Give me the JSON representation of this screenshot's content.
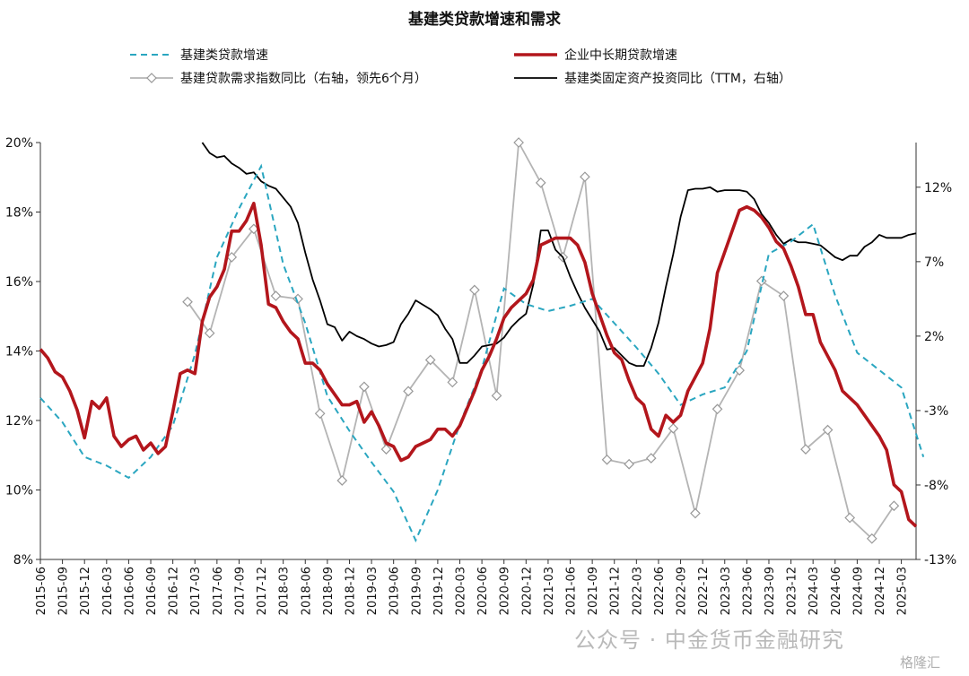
{
  "chart_data": {
    "type": "line",
    "title": "基建类贷款增速和需求",
    "left_axis": {
      "ylim": [
        0.08,
        0.2
      ],
      "ticks": [
        "20%",
        "18%",
        "16%",
        "14%",
        "12%",
        "10%",
        "8%"
      ]
    },
    "right_axis": {
      "ylim": [
        -13,
        15
      ],
      "ticks": [
        "12%",
        "7%",
        "2%",
        "-3%",
        "-8%",
        "-13%"
      ]
    },
    "x_tick_labels": [
      "2015-06",
      "2015-09",
      "2015-12",
      "2016-03",
      "2016-06",
      "2016-09",
      "2016-12",
      "2017-03",
      "2017-06",
      "2017-09",
      "2017-12",
      "2018-03",
      "2018-06",
      "2018-09",
      "2018-12",
      "2019-03",
      "2019-06",
      "2019-09",
      "2019-12",
      "2020-03",
      "2020-06",
      "2020-09",
      "2020-12",
      "2021-03",
      "2021-06",
      "2021-09",
      "2021-12",
      "2022-03",
      "2022-06",
      "2022-09",
      "2022-12",
      "2023-03",
      "2023-06",
      "2023-09",
      "2023-12",
      "2024-03",
      "2024-06",
      "2024-09",
      "2024-12",
      "2025-03"
    ],
    "legend_position": "top",
    "series": [
      {
        "name": "基建类贷款增速",
        "axis": "left",
        "style": "dashed",
        "color": "#2aa6c0",
        "points": [
          [
            0,
            0.1265
          ],
          [
            3,
            0.1195
          ],
          [
            6,
            0.1095
          ],
          [
            9,
            0.107
          ],
          [
            12,
            0.1035
          ],
          [
            15,
            0.1095
          ],
          [
            18,
            0.1185
          ],
          [
            21,
            0.139
          ],
          [
            24,
            0.167
          ],
          [
            27,
            0.181
          ],
          [
            30,
            0.1932
          ],
          [
            33,
            0.165
          ],
          [
            36,
            0.148
          ],
          [
            39,
            0.127
          ],
          [
            42,
            0.117
          ],
          [
            45,
            0.108
          ],
          [
            48,
            0.0995
          ],
          [
            51,
            0.0855
          ],
          [
            54,
            0.1
          ],
          [
            57,
            0.119
          ],
          [
            60,
            0.135
          ],
          [
            63,
            0.158
          ],
          [
            66,
            0.1535
          ],
          [
            69,
            0.1515
          ],
          [
            72,
            0.153
          ],
          [
            75,
            0.155
          ],
          [
            78,
            0.148
          ],
          [
            81,
            0.141
          ],
          [
            84,
            0.1335
          ],
          [
            87,
            0.1245
          ],
          [
            90,
            0.1275
          ],
          [
            93,
            0.1295
          ],
          [
            96,
            0.14
          ],
          [
            99,
            0.168
          ],
          [
            102,
            0.1715
          ],
          [
            105,
            0.1765
          ],
          [
            108,
            0.156
          ],
          [
            111,
            0.1395
          ],
          [
            114,
            0.1345
          ],
          [
            117,
            0.1295
          ],
          [
            120,
            0.1095
          ]
        ]
      },
      {
        "name": "企业中长期贷款增速",
        "axis": "left",
        "style": "solid-thick",
        "color": "#b3161c",
        "points": [
          [
            0,
            0.1405
          ],
          [
            1,
            0.138
          ],
          [
            2,
            0.134
          ],
          [
            3,
            0.1325
          ],
          [
            4,
            0.1285
          ],
          [
            5,
            0.123
          ],
          [
            6,
            0.115
          ],
          [
            7,
            0.1255
          ],
          [
            8,
            0.1235
          ],
          [
            9,
            0.1265
          ],
          [
            10,
            0.1155
          ],
          [
            11,
            0.1125
          ],
          [
            12,
            0.1145
          ],
          [
            13,
            0.1155
          ],
          [
            14,
            0.1115
          ],
          [
            15,
            0.1135
          ],
          [
            16,
            0.1105
          ],
          [
            17,
            0.1125
          ],
          [
            18,
            0.1225
          ],
          [
            19,
            0.1335
          ],
          [
            20,
            0.1345
          ],
          [
            21,
            0.1335
          ],
          [
            22,
            0.1485
          ],
          [
            23,
            0.1555
          ],
          [
            24,
            0.1585
          ],
          [
            25,
            0.1635
          ],
          [
            26,
            0.1745
          ],
          [
            27,
            0.1745
          ],
          [
            28,
            0.1775
          ],
          [
            29,
            0.1825
          ],
          [
            30,
            0.1705
          ],
          [
            31,
            0.1535
          ],
          [
            32,
            0.1525
          ],
          [
            33,
            0.1485
          ],
          [
            34,
            0.1455
          ],
          [
            35,
            0.1435
          ],
          [
            36,
            0.1365
          ],
          [
            37,
            0.1365
          ],
          [
            38,
            0.1345
          ],
          [
            39,
            0.1305
          ],
          [
            40,
            0.1275
          ],
          [
            41,
            0.1245
          ],
          [
            42,
            0.1245
          ],
          [
            43,
            0.1255
          ],
          [
            44,
            0.1195
          ],
          [
            45,
            0.1225
          ],
          [
            46,
            0.1185
          ],
          [
            47,
            0.1135
          ],
          [
            48,
            0.1125
          ],
          [
            49,
            0.1085
          ],
          [
            50,
            0.1095
          ],
          [
            51,
            0.1125
          ],
          [
            52,
            0.1135
          ],
          [
            53,
            0.1145
          ],
          [
            54,
            0.1175
          ],
          [
            55,
            0.1175
          ],
          [
            56,
            0.1155
          ],
          [
            57,
            0.1185
          ],
          [
            58,
            0.1235
          ],
          [
            59,
            0.1285
          ],
          [
            60,
            0.1345
          ],
          [
            61,
            0.1385
          ],
          [
            62,
            0.1435
          ],
          [
            63,
            0.1495
          ],
          [
            64,
            0.1525
          ],
          [
            65,
            0.1545
          ],
          [
            66,
            0.1565
          ],
          [
            67,
            0.1605
          ],
          [
            68,
            0.1705
          ],
          [
            69,
            0.1715
          ],
          [
            70,
            0.1725
          ],
          [
            71,
            0.1725
          ],
          [
            72,
            0.1725
          ],
          [
            73,
            0.1705
          ],
          [
            74,
            0.1655
          ],
          [
            75,
            0.1565
          ],
          [
            76,
            0.1505
          ],
          [
            77,
            0.1445
          ],
          [
            78,
            0.1395
          ],
          [
            79,
            0.1375
          ],
          [
            80,
            0.1315
          ],
          [
            81,
            0.1265
          ],
          [
            82,
            0.1245
          ],
          [
            83,
            0.1175
          ],
          [
            84,
            0.1155
          ],
          [
            85,
            0.1215
          ],
          [
            86,
            0.1195
          ],
          [
            87,
            0.1215
          ],
          [
            88,
            0.1285
          ],
          [
            89,
            0.1325
          ],
          [
            90,
            0.1365
          ],
          [
            91,
            0.1465
          ],
          [
            92,
            0.1625
          ],
          [
            93,
            0.1685
          ],
          [
            94,
            0.1745
          ],
          [
            95,
            0.1805
          ],
          [
            96,
            0.1815
          ],
          [
            97,
            0.1805
          ],
          [
            98,
            0.1785
          ],
          [
            99,
            0.1755
          ],
          [
            100,
            0.1715
          ],
          [
            101,
            0.1695
          ],
          [
            102,
            0.1645
          ],
          [
            103,
            0.1585
          ],
          [
            104,
            0.1505
          ],
          [
            105,
            0.1505
          ],
          [
            106,
            0.1425
          ],
          [
            107,
            0.1385
          ],
          [
            108,
            0.1345
          ],
          [
            109,
            0.1285
          ],
          [
            110,
            0.1265
          ],
          [
            111,
            0.1245
          ],
          [
            112,
            0.1215
          ],
          [
            113,
            0.1185
          ],
          [
            114,
            0.1155
          ],
          [
            115,
            0.1115
          ],
          [
            116,
            0.1015
          ],
          [
            117,
            0.0995
          ],
          [
            118,
            0.0915
          ],
          [
            119,
            0.0895
          ]
        ]
      },
      {
        "name": "基建贷款需求指数同比（右轴，领先6个月）",
        "axis": "right",
        "style": "line-diamond",
        "color": "#b4b4b4",
        "points": [
          [
            20,
            4.3
          ],
          [
            23,
            2.2
          ],
          [
            26,
            7.3
          ],
          [
            29,
            9.2
          ],
          [
            32,
            4.7
          ],
          [
            35,
            4.5
          ],
          [
            38,
            -3.2
          ],
          [
            41,
            -7.7
          ],
          [
            44,
            -1.4
          ],
          [
            47,
            -5.6
          ],
          [
            50,
            -1.7
          ],
          [
            53,
            0.4
          ],
          [
            56,
            -1.1
          ],
          [
            59,
            5.1
          ],
          [
            62,
            -2
          ],
          [
            65,
            15
          ],
          [
            68,
            12.3
          ],
          [
            71,
            7.3
          ],
          [
            74,
            12.7
          ],
          [
            77,
            -6.3
          ],
          [
            80,
            -6.6
          ],
          [
            83,
            -6.2
          ],
          [
            86,
            -4.2
          ],
          [
            89,
            -9.9
          ],
          [
            92,
            -2.9
          ],
          [
            95,
            -0.3
          ],
          [
            98,
            5.7
          ],
          [
            101,
            4.7
          ],
          [
            104,
            -5.6
          ],
          [
            107,
            -4.3
          ],
          [
            110,
            -10.2
          ],
          [
            113,
            -11.6
          ],
          [
            116,
            -9.4
          ]
        ]
      },
      {
        "name": "基建类固定资产投资同比（TTM，右轴）",
        "axis": "right",
        "style": "solid-thin",
        "color": "#000000",
        "points": [
          [
            22,
            15
          ],
          [
            23,
            14.3
          ],
          [
            24,
            14
          ],
          [
            25,
            14.1
          ],
          [
            26,
            13.6
          ],
          [
            27,
            13.3
          ],
          [
            28,
            12.9
          ],
          [
            29,
            13
          ],
          [
            30,
            12.4
          ],
          [
            31,
            12.1
          ],
          [
            32,
            11.9
          ],
          [
            33,
            11.3
          ],
          [
            34,
            10.7
          ],
          [
            35,
            9.6
          ],
          [
            36,
            7.6
          ],
          [
            37,
            5.8
          ],
          [
            38,
            4.4
          ],
          [
            39,
            2.8
          ],
          [
            40,
            2.6
          ],
          [
            41,
            1.7
          ],
          [
            42,
            2.3
          ],
          [
            43,
            2
          ],
          [
            44,
            1.8
          ],
          [
            45,
            1.5
          ],
          [
            46,
            1.3
          ],
          [
            47,
            1.4
          ],
          [
            48,
            1.6
          ],
          [
            49,
            2.8
          ],
          [
            50,
            3.5
          ],
          [
            51,
            4.4
          ],
          [
            52,
            4.1
          ],
          [
            53,
            3.8
          ],
          [
            54,
            3.4
          ],
          [
            55,
            2.5
          ],
          [
            56,
            1.8
          ],
          [
            57,
            0.2
          ],
          [
            58,
            0.2
          ],
          [
            59,
            0.7
          ],
          [
            60,
            1.3
          ],
          [
            61,
            1.4
          ],
          [
            62,
            1.5
          ],
          [
            63,
            1.9
          ],
          [
            64,
            2.6
          ],
          [
            65,
            3.1
          ],
          [
            66,
            3.5
          ],
          [
            67,
            5.5
          ],
          [
            68,
            9.1
          ],
          [
            69,
            9.1
          ],
          [
            70,
            7.8
          ],
          [
            71,
            7.3
          ],
          [
            72,
            6
          ],
          [
            73,
            4.9
          ],
          [
            74,
            3.9
          ],
          [
            75,
            3.1
          ],
          [
            76,
            2.3
          ],
          [
            77,
            1.1
          ],
          [
            78,
            1.2
          ],
          [
            79,
            0.7
          ],
          [
            80,
            0.2
          ],
          [
            81,
            0
          ],
          [
            82,
            0
          ],
          [
            83,
            1.2
          ],
          [
            84,
            2.9
          ],
          [
            85,
            5.3
          ],
          [
            86,
            7.5
          ],
          [
            87,
            10
          ],
          [
            88,
            11.8
          ],
          [
            89,
            11.9
          ],
          [
            90,
            11.9
          ],
          [
            91,
            12
          ],
          [
            92,
            11.7
          ],
          [
            93,
            11.8
          ],
          [
            94,
            11.8
          ],
          [
            95,
            11.8
          ],
          [
            96,
            11.7
          ],
          [
            97,
            11.2
          ],
          [
            98,
            10.2
          ],
          [
            99,
            9.6
          ],
          [
            100,
            8.8
          ],
          [
            101,
            8.2
          ],
          [
            102,
            8.5
          ],
          [
            103,
            8.3
          ],
          [
            104,
            8.3
          ],
          [
            105,
            8.2
          ],
          [
            106,
            8.1
          ],
          [
            107,
            7.7
          ],
          [
            108,
            7.3
          ],
          [
            109,
            7.1
          ],
          [
            110,
            7.4
          ],
          [
            111,
            7.4
          ],
          [
            112,
            8
          ],
          [
            113,
            8.3
          ],
          [
            114,
            8.8
          ],
          [
            115,
            8.6
          ],
          [
            116,
            8.6
          ],
          [
            117,
            8.6
          ],
          [
            118,
            8.8
          ],
          [
            119,
            8.9
          ]
        ]
      }
    ]
  },
  "watermark": {
    "text": "公众号 · 中金货币金融研究",
    "corner_logo": "格隆汇"
  }
}
